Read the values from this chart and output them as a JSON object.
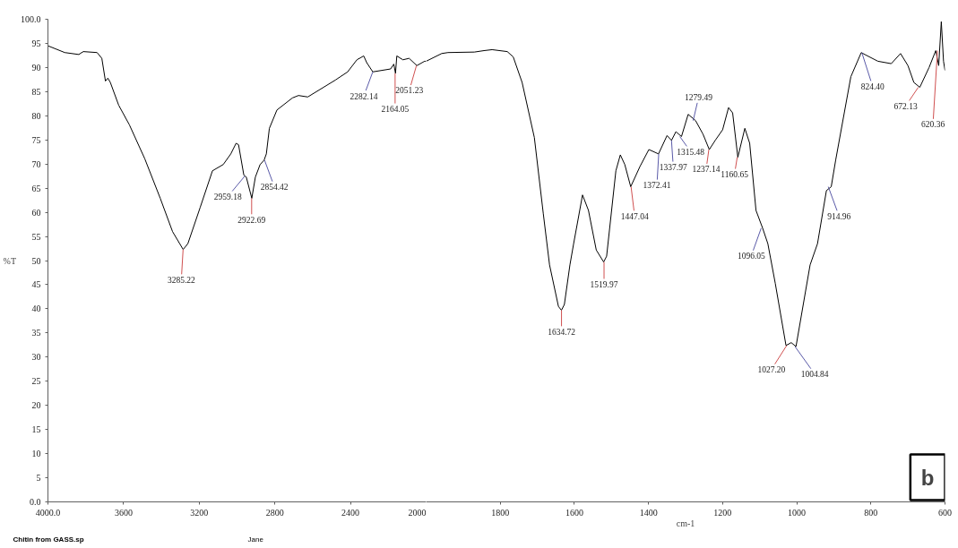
{
  "chart_data": [
    {
      "type": "line",
      "color": "#000000",
      "ylabel": "%T",
      "tick_labels": "xy",
      "x": [
        4000,
        3911,
        3837,
        3813,
        3740,
        3715,
        3696,
        3683,
        3670,
        3626,
        3569,
        3488,
        3406,
        3341,
        3285,
        3260,
        3195,
        3130,
        3073,
        3033,
        3005,
        2992,
        2964,
        2951,
        2922,
        2903,
        2878,
        2857,
        2845,
        2829,
        2789,
        2707,
        2675,
        2626,
        2480,
        2415,
        2366,
        2330,
        2314,
        2282,
        2188,
        2171,
        2162,
        2155,
        2123,
        2090,
        2049,
        2008,
        2000
      ],
      "values": [
        94.5,
        93.1,
        92.7,
        93.3,
        93.1,
        91.9,
        87.2,
        87.8,
        86.9,
        82.2,
        78.1,
        71.1,
        62.9,
        56.0,
        52.3,
        53.5,
        61.0,
        68.6,
        69.9,
        72.1,
        74.3,
        74.0,
        67.7,
        67.3,
        62.9,
        67.3,
        69.9,
        70.8,
        72.1,
        77.4,
        81.2,
        83.7,
        84.2,
        83.9,
        87.4,
        89.1,
        91.6,
        92.4,
        91.0,
        89.1,
        89.7,
        90.7,
        88.8,
        92.4,
        91.6,
        91.9,
        90.4,
        91.3,
        91.3
      ],
      "xlim": [
        4000,
        2000
      ],
      "xticks": [
        {
          "value": 4000,
          "label": "4000.0"
        },
        3600,
        3200,
        2800,
        2400,
        2000
      ],
      "ylim": [
        0,
        100
      ],
      "yticks": [
        {
          "value": 0,
          "label": "0.0"
        },
        5,
        10,
        15,
        20,
        25,
        30,
        35,
        40,
        45,
        50,
        55,
        60,
        65,
        70,
        75,
        80,
        85,
        90,
        95,
        {
          "value": 100,
          "label": "100.0"
        }
      ],
      "annotations": [
        {
          "text": "3285.22",
          "x": 3285.22,
          "y": 52.3
        },
        {
          "text": "2959.18",
          "x": 2959.18,
          "y": 67.5
        },
        {
          "text": "2922.69",
          "x": 2922.69,
          "y": 62.9
        },
        {
          "text": "2854.42",
          "x": 2854.42,
          "y": 70.8
        },
        {
          "text": "2282.14",
          "x": 2282.14,
          "y": 89.1
        },
        {
          "text": "2164.05",
          "x": 2164.05,
          "y": 88.8
        },
        {
          "text": "2051.23",
          "x": 2051.23,
          "y": 90.4
        },
        "Chitin from GASS.sp",
        "Jane"
      ]
    },
    {
      "type": "line",
      "color": "#000000",
      "xlabel": "cm-1",
      "tick_labels": "x",
      "x": [
        2000,
        1958,
        1941,
        1870,
        1844,
        1822,
        1781,
        1765,
        1741,
        1708,
        1684,
        1667,
        1643,
        1635,
        1627,
        1612,
        1602,
        1578,
        1562,
        1541,
        1521,
        1513,
        1488,
        1476,
        1464,
        1448,
        1423,
        1399,
        1373,
        1350,
        1338,
        1326,
        1311,
        1293,
        1273,
        1253,
        1236,
        1220,
        1200,
        1184,
        1173,
        1159,
        1140,
        1127,
        1110,
        1092,
        1078,
        1058,
        1029,
        1015,
        1002,
        964,
        944,
        920,
        907,
        895,
        854,
        826,
        814,
        781,
        745,
        720,
        700,
        684,
        668,
        643,
        625,
        617,
        610,
        604,
        600
      ],
      "values": [
        91.3,
        92.9,
        93.1,
        93.2,
        93.5,
        93.7,
        93.3,
        92.2,
        86.9,
        75.5,
        59.8,
        49.1,
        40.5,
        39.7,
        40.9,
        49.1,
        53.5,
        63.6,
        60.4,
        52.2,
        49.7,
        50.9,
        68.6,
        71.9,
        69.9,
        65.3,
        69.5,
        73.0,
        72.1,
        75.9,
        74.9,
        76.7,
        75.7,
        80.3,
        79.0,
        76.2,
        73.0,
        74.9,
        77.1,
        81.7,
        80.6,
        71.4,
        77.4,
        74.3,
        60.4,
        56.7,
        53.5,
        45.3,
        32.4,
        33.0,
        32.2,
        49.1,
        53.5,
        64.5,
        65.3,
        70.8,
        88.1,
        93.1,
        92.6,
        91.3,
        90.8,
        92.9,
        90.4,
        86.9,
        85.9,
        90.0,
        93.5,
        90.4,
        99.5,
        91.3,
        89.4
      ],
      "xlim": [
        2000,
        600
      ],
      "xticks": [
        1800,
        1600,
        1400,
        1200,
        1000,
        800,
        600
      ],
      "ylim": [
        0,
        100
      ],
      "annotations": [
        {
          "text": "1634.72",
          "x": 1634.72,
          "y": 39.7
        },
        {
          "text": "1519.97",
          "x": 1519.97,
          "y": 49.7
        },
        {
          "text": "1447.04",
          "x": 1447.04,
          "y": 65.3
        },
        {
          "text": "1372.41",
          "x": 1372.41,
          "y": 72.1
        },
        {
          "text": "1337.97",
          "x": 1337.97,
          "y": 74.9
        },
        {
          "text": "1315.48",
          "x": 1315.48,
          "y": 75.7
        },
        {
          "text": "1279.49",
          "x": 1279.49,
          "y": 79.0
        },
        {
          "text": "1237.14",
          "x": 1237.14,
          "y": 73.0
        },
        {
          "text": "1160.65",
          "x": 1160.65,
          "y": 71.4
        },
        {
          "text": "1096.05",
          "x": 1096.05,
          "y": 56.7
        },
        {
          "text": "1027.20",
          "x": 1027.2,
          "y": 32.4
        },
        {
          "text": "1004.84",
          "x": 1004.84,
          "y": 32.2
        },
        {
          "text": "914.96",
          "x": 914.96,
          "y": 65.3
        },
        {
          "text": "824.40",
          "x": 824.4,
          "y": 93.1
        },
        {
          "text": "672.13",
          "x": 672.13,
          "y": 85.9
        },
        {
          "text": "620.36",
          "x": 620.36,
          "y": 93.5
        },
        "b"
      ]
    }
  ]
}
